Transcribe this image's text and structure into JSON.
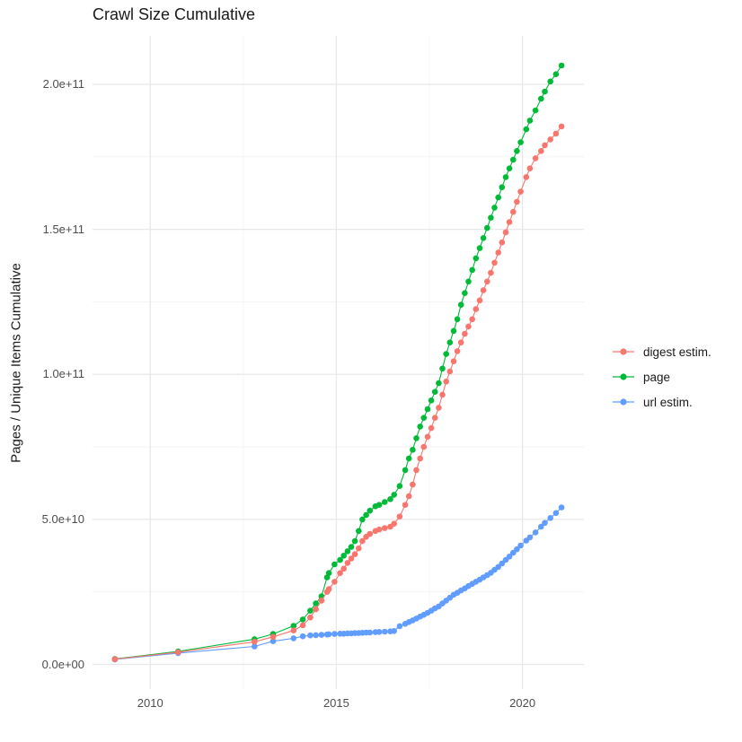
{
  "title": "Crawl Size Cumulative",
  "chart_data": {
    "type": "scatter",
    "title": "Crawl Size Cumulative",
    "xlabel": "",
    "ylabel": "Pages / Unique Items Cumulative",
    "grid": true,
    "legend_position": "right",
    "xlim": [
      2008.45,
      2021.65
    ],
    "ylim": [
      -8500000000.0,
      216700000000.0
    ],
    "x_ticks": [
      {
        "label": "2010",
        "value": 2010
      },
      {
        "label": "2015",
        "value": 2015
      },
      {
        "label": "2020",
        "value": 2020
      }
    ],
    "y_ticks": [
      {
        "label": "0.0e+00",
        "value": 0
      },
      {
        "label": "5.0e+10",
        "value": 50000000000.0
      },
      {
        "label": "1.0e+11",
        "value": 100000000000.0
      },
      {
        "label": "1.5e+11",
        "value": 150000000000.0
      },
      {
        "label": "2.0e+11",
        "value": 200000000000.0
      }
    ],
    "x": [
      2009.05,
      2010.75,
      2012.8,
      2013.3,
      2013.85,
      2014.1,
      2014.3,
      2014.45,
      2014.6,
      2014.75,
      2014.8,
      2014.95,
      2015.1,
      2015.2,
      2015.3,
      2015.4,
      2015.5,
      2015.6,
      2015.7,
      2015.8,
      2015.9,
      2016.05,
      2016.15,
      2016.3,
      2016.45,
      2016.55,
      2016.7,
      2016.85,
      2016.95,
      2017.05,
      2017.15,
      2017.25,
      2017.35,
      2017.45,
      2017.55,
      2017.65,
      2017.75,
      2017.85,
      2017.95,
      2018.05,
      2018.15,
      2018.25,
      2018.35,
      2018.45,
      2018.55,
      2018.65,
      2018.75,
      2018.85,
      2018.95,
      2019.05,
      2019.15,
      2019.25,
      2019.35,
      2019.45,
      2019.55,
      2019.65,
      2019.75,
      2019.85,
      2019.95,
      2020.1,
      2020.2,
      2020.35,
      2020.5,
      2020.6,
      2020.75,
      2020.9,
      2021.05
    ],
    "series": [
      {
        "name": "digest estim.",
        "color": "#F8766D",
        "values": [
          1800000000.0,
          4200000000.0,
          7800000000.0,
          9500000000.0,
          11700000000.0,
          13500000000.0,
          16200000000.0,
          19000000000.0,
          22000000000.0,
          25000000000.0,
          26000000000.0,
          28500000000.0,
          31500000000.0,
          33000000000.0,
          35000000000.0,
          36500000000.0,
          38000000000.0,
          40000000000.0,
          42500000000.0,
          44000000000.0,
          45000000000.0,
          46000000000.0,
          46500000000.0,
          47000000000.0,
          47500000000.0,
          48500000000.0,
          51000000000.0,
          55000000000.0,
          58000000000.0,
          62000000000.0,
          67000000000.0,
          71000000000.0,
          75000000000.0,
          78500000000.0,
          81500000000.0,
          85000000000.0,
          88500000000.0,
          93000000000.0,
          97500000000.0,
          101000000000.0,
          104500000000.0,
          108000000000.0,
          111000000000.0,
          114000000000.0,
          116500000000.0,
          119000000000.0,
          122500000000.0,
          125500000000.0,
          129000000000.0,
          132000000000.0,
          135000000000.0,
          138500000000.0,
          142000000000.0,
          145500000000.0,
          149000000000.0,
          152500000000.0,
          156000000000.0,
          159500000000.0,
          163000000000.0,
          168000000000.0,
          171000000000.0,
          174500000000.0,
          177000000000.0,
          179000000000.0,
          181000000000.0,
          183000000000.0,
          185500000000.0
        ]
      },
      {
        "name": "page",
        "color": "#00BA38",
        "values": [
          1900000000.0,
          4500000000.0,
          8700000000.0,
          10500000000.0,
          13300000000.0,
          15500000000.0,
          18500000000.0,
          21000000000.0,
          23500000000.0,
          30000000000.0,
          31500000000.0,
          34500000000.0,
          36000000000.0,
          37500000000.0,
          39000000000.0,
          40500000000.0,
          42500000000.0,
          46000000000.0,
          50000000000.0,
          51500000000.0,
          53000000000.0,
          54500000000.0,
          55000000000.0,
          56000000000.0,
          57000000000.0,
          58500000000.0,
          61500000000.0,
          67000000000.0,
          71000000000.0,
          74000000000.0,
          78000000000.0,
          82000000000.0,
          85000000000.0,
          88000000000.0,
          91000000000.0,
          94000000000.0,
          97000000000.0,
          102000000000.0,
          107000000000.0,
          111000000000.0,
          115000000000.0,
          119000000000.0,
          124000000000.0,
          128000000000.0,
          132000000000.0,
          136000000000.0,
          140000000000.0,
          143500000000.0,
          147000000000.0,
          150500000000.0,
          154000000000.0,
          157500000000.0,
          161000000000.0,
          164500000000.0,
          168000000000.0,
          171000000000.0,
          174000000000.0,
          177000000000.0,
          180000000000.0,
          184500000000.0,
          187500000000.0,
          191000000000.0,
          195000000000.0,
          197500000000.0,
          201000000000.0,
          203500000000.0,
          206500000000.0
        ]
      },
      {
        "name": "url estim.",
        "color": "#619CFF",
        "values": [
          1700000000.0,
          3900000000.0,
          6200000000.0,
          8000000000.0,
          9000000000.0,
          9700000000.0,
          10000000000.0,
          10100000000.0,
          10200000000.0,
          10300000000.0,
          10400000000.0,
          10500000000.0,
          10600000000.0,
          10600000000.0,
          10700000000.0,
          10700000000.0,
          10800000000.0,
          10800000000.0,
          10900000000.0,
          11000000000.0,
          11000000000.0,
          11100000000.0,
          11200000000.0,
          11300000000.0,
          11400000000.0,
          11500000000.0,
          13200000000.0,
          14000000000.0,
          14600000000.0,
          15200000000.0,
          15800000000.0,
          16500000000.0,
          17100000000.0,
          17800000000.0,
          18500000000.0,
          19300000000.0,
          20000000000.0,
          21000000000.0,
          22000000000.0,
          23000000000.0,
          24000000000.0,
          24700000000.0,
          25500000000.0,
          26200000000.0,
          27000000000.0,
          27800000000.0,
          28500000000.0,
          29200000000.0,
          30000000000.0,
          30800000000.0,
          31600000000.0,
          32600000000.0,
          33600000000.0,
          34800000000.0,
          36000000000.0,
          37200000000.0,
          38500000000.0,
          39700000000.0,
          41000000000.0,
          42700000000.0,
          43800000000.0,
          45500000000.0,
          47500000000.0,
          48800000000.0,
          50500000000.0,
          52200000000.0,
          54100000000.0
        ]
      }
    ],
    "style": {
      "grid_major_color": "#E8E8E8",
      "grid_minor_color": "#F2F2F2",
      "point_radius": 3.3
    }
  }
}
